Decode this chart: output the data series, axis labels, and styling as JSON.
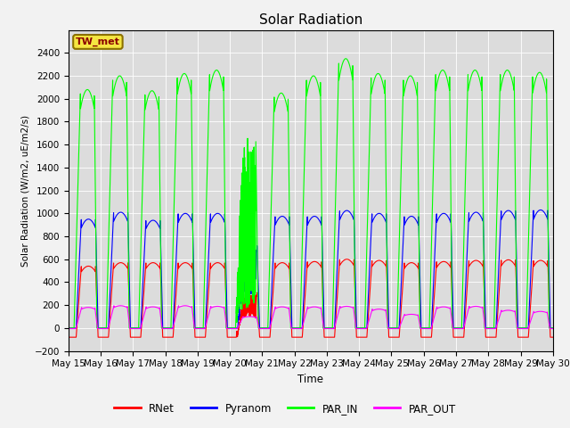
{
  "title": "Solar Radiation",
  "ylabel": "Solar Radiation (W/m2, uE/m2/s)",
  "xlabel": "Time",
  "ylim": [
    -200,
    2600
  ],
  "yticks": [
    -200,
    0,
    200,
    400,
    600,
    800,
    1000,
    1200,
    1400,
    1600,
    1800,
    2000,
    2200,
    2400
  ],
  "start_day": 15,
  "end_day": 30,
  "n_days": 15,
  "station_label": "TW_met",
  "series": [
    "RNet",
    "Pyranom",
    "PAR_IN",
    "PAR_OUT"
  ],
  "colors": [
    "red",
    "blue",
    "lime",
    "magenta"
  ],
  "background_color": "#dcdcdc",
  "fig_bg": "#f2f2f2",
  "day_peaks_PAR_IN": [
    2080,
    2200,
    2070,
    2220,
    2250,
    1670,
    2050,
    2200,
    2350,
    2220,
    2200,
    2250,
    2250,
    2250,
    2230
  ],
  "day_peaks_Pyranom": [
    950,
    1010,
    940,
    1000,
    1000,
    720,
    975,
    975,
    1025,
    1000,
    975,
    1000,
    1010,
    1025,
    1030
  ],
  "day_peaks_RNet": [
    540,
    570,
    570,
    570,
    570,
    310,
    570,
    580,
    600,
    590,
    570,
    580,
    590,
    595,
    590
  ],
  "day_peaks_PAR_OUT": [
    180,
    195,
    185,
    195,
    190,
    100,
    185,
    185,
    190,
    165,
    120,
    185,
    190,
    155,
    145
  ],
  "day_night_RNet": -80,
  "day_night_PAR_OUT": -5,
  "pts_per_day": 288
}
